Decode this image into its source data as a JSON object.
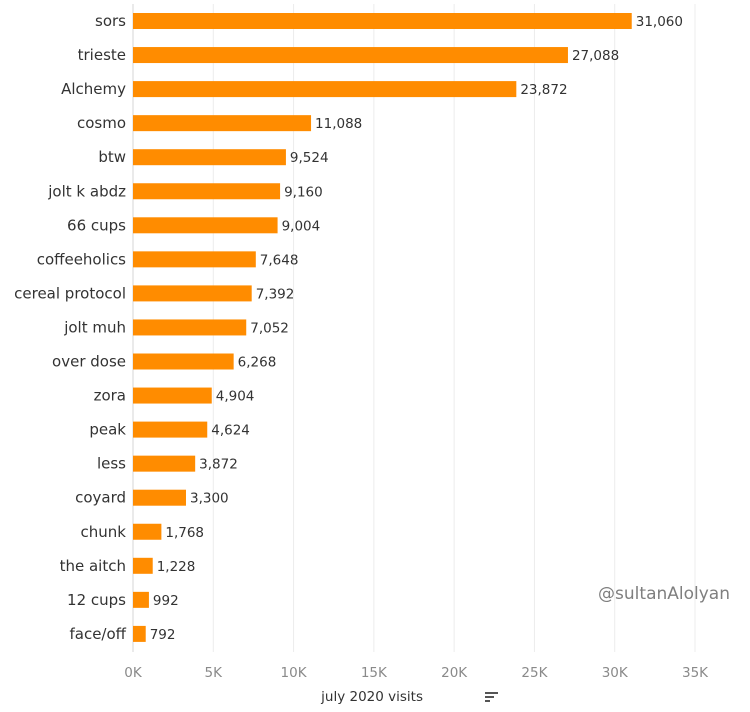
{
  "chart_data": {
    "type": "bar",
    "orientation": "horizontal",
    "categories": [
      "sors",
      "trieste",
      "Alchemy",
      "cosmo",
      "btw",
      "jolt k abdz",
      "66 cups",
      "coffeeholics",
      "cereal protocol",
      "jolt muh",
      "over dose",
      "zora",
      "peak",
      "less",
      "coyard",
      "chunk",
      "the aitch",
      "12 cups",
      "face/off"
    ],
    "values": [
      31060,
      27088,
      23872,
      11088,
      9524,
      9160,
      9004,
      7648,
      7392,
      7052,
      6268,
      4904,
      4624,
      3872,
      3300,
      1768,
      1228,
      992,
      792
    ],
    "value_labels": [
      "31,060",
      "27,088",
      "23,872",
      "11,088",
      "9,524",
      "9,160",
      "9,004",
      "7,648",
      "7,392",
      "7,052",
      "6,268",
      "4,904",
      "4,624",
      "3,872",
      "3,300",
      "1,768",
      "1,228",
      "992",
      "792"
    ],
    "xlabel": "july 2020 visits",
    "xlim": [
      0,
      35000
    ],
    "xticks": [
      0,
      5000,
      10000,
      15000,
      20000,
      25000,
      30000,
      35000
    ],
    "xtick_labels": [
      "0K",
      "5K",
      "10K",
      "15K",
      "20K",
      "25K",
      "30K",
      "35K"
    ],
    "grid": true,
    "sort": "descending",
    "bar_color": "#FF8C00",
    "watermark": "@sultanAlolyan"
  }
}
